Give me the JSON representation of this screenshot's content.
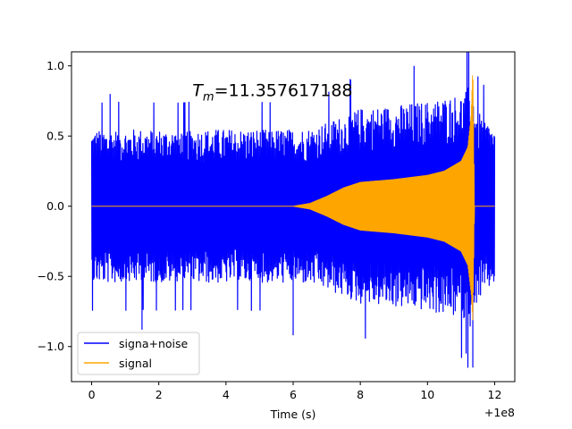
{
  "chart_data": {
    "type": "line",
    "title": "",
    "xlabel": "Time (s)",
    "ylabel": "",
    "x_offset_label": "+1e8",
    "xlim": [
      -0.6,
      12.6
    ],
    "ylim": [
      -1.25,
      1.1
    ],
    "x_ticks": [
      0,
      2,
      4,
      6,
      8,
      10,
      12
    ],
    "x_tick_labels": [
      "0",
      "2",
      "4",
      "6",
      "8",
      "10",
      "12"
    ],
    "y_ticks": [
      1.0,
      0.5,
      0.0,
      -0.5,
      -1.0
    ],
    "y_tick_labels": [
      "1.0",
      "0.5",
      "0.0",
      "−0.5",
      "−1.0"
    ],
    "annotation": {
      "symbol": "T",
      "subscript": "m",
      "equals_value": "=11.357617188",
      "x": 3.0,
      "y": 0.83
    },
    "legend": {
      "placement": "lower-left",
      "entries": [
        "signa+noise",
        "signal"
      ]
    },
    "series": [
      {
        "name": "signa+noise",
        "color": "#0000ff",
        "envelope": {
          "x": [
            0,
            6.0,
            6.5,
            7.0,
            7.5,
            8.0,
            9.0,
            10.0,
            10.5,
            11.0,
            11.2,
            11.35,
            11.45,
            12.0
          ],
          "y_max": [
            0.55,
            0.55,
            0.56,
            0.6,
            0.65,
            0.7,
            0.72,
            0.75,
            0.78,
            0.8,
            0.85,
            0.9,
            0.7,
            0.55
          ],
          "y_min": [
            -0.55,
            -0.55,
            -0.56,
            -0.6,
            -0.65,
            -0.7,
            -0.72,
            -0.75,
            -0.78,
            -0.8,
            -0.85,
            -0.9,
            -0.7,
            -0.55
          ]
        },
        "peaks": [
          {
            "x": 9.6,
            "y": 1.0
          },
          {
            "x": 11.35,
            "y": -1.15
          },
          {
            "x": 11.15,
            "y": -1.05
          },
          {
            "x": 6.0,
            "y": -0.92
          },
          {
            "x": 1.5,
            "y": -0.88
          },
          {
            "x": 0.55,
            "y": 0.8
          }
        ]
      },
      {
        "name": "signal",
        "color": "#ffa500",
        "envelope": {
          "x": [
            0,
            6.0,
            6.5,
            7.0,
            7.5,
            8.0,
            9.0,
            10.0,
            10.5,
            11.0,
            11.2,
            11.3,
            11.35,
            11.4,
            12.0
          ],
          "y_max": [
            0.0,
            0.0,
            0.02,
            0.07,
            0.13,
            0.17,
            0.19,
            0.22,
            0.25,
            0.32,
            0.42,
            0.65,
            1.0,
            0.0,
            0.0
          ],
          "y_min": [
            0.0,
            0.0,
            -0.02,
            -0.07,
            -0.13,
            -0.17,
            -0.19,
            -0.22,
            -0.25,
            -0.32,
            -0.42,
            -0.62,
            -0.82,
            0.0,
            0.0
          ]
        }
      }
    ]
  }
}
